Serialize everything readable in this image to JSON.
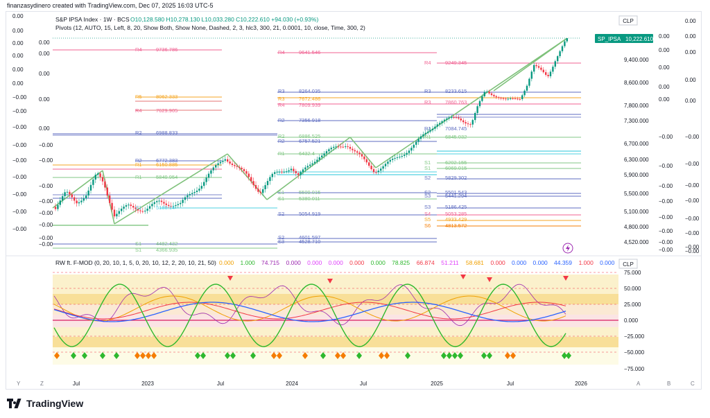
{
  "header": {
    "credit": "finanzasydinero created with TradingView.com, Dec 07, 2025 16:03 UTC-5"
  },
  "legend": {
    "symbol_line": "S&P IPSA Index · 1W · BCS",
    "ohlc": "O10,128.580  H10,278.130  L10,033.280  C10,222.610  +94.030 (+0.93%)",
    "pivots_line": "Pivots (12, AUTO, 15, Left, 8, 20, Show Both, Show None, Dashed, 2, 3, hlc3, 300, 21, 0.0001, 10, close, Time, 300, 2)"
  },
  "price_scale": {
    "currency": "CLP",
    "ticks": [
      "9,400.000",
      "8,600.000",
      "7,800.000",
      "7,300.000",
      "6,700.000",
      "6,300.000",
      "5,900.000",
      "5,500.000",
      "5,100.000",
      "4,800.000",
      "4,520.000"
    ],
    "last_price_symbol": "SP_IPSA",
    "last_price_value": "10,222.610"
  },
  "left_scales": {
    "col1": [
      "0.00",
      "0.00",
      "0.00",
      "0.00",
      "0.00",
      "0.00",
      "−0.00",
      "−0.00",
      "−0.00",
      "−0.00",
      "−0.00",
      "−0.00",
      "−0.00",
      "−0.00",
      "−0.00"
    ],
    "col2": [
      "0.00",
      "0.00",
      "0.00",
      "0.00",
      "0.00",
      "−0.00",
      "−0.00",
      "−0.00",
      "−0.00",
      "−0.00",
      "−0.00",
      "−0.00",
      "−0.00"
    ]
  },
  "right_scales": {
    "col1": [
      "0.00",
      "0.00",
      "0.00",
      "0.00",
      "0.00",
      "−0.00",
      "−0.00",
      "−0.00",
      "−0.00",
      "−0.00",
      "−0.00",
      "−0.00",
      "−0.00"
    ],
    "col2": [
      "0.00",
      "0.00",
      "0.00",
      "0.00",
      "0.00",
      "−0.00",
      "−0.00",
      "−0.00",
      "−0.00",
      "−0.00",
      "−0.00",
      "−0.00",
      "−0.00",
      "−0.00",
      "−0.00"
    ]
  },
  "pivot_labels": [
    {
      "t": "R4",
      "v": "9736.786"
    },
    {
      "t": "R4",
      "v": "9641.546"
    },
    {
      "t": "R4",
      "v": "9249.345"
    },
    {
      "t": "R3",
      "v": "8264.035"
    },
    {
      "t": "R3",
      "v": "8233.615"
    },
    {
      "t": "R5",
      "v": "8062.333"
    },
    {
      "t": "R4",
      "v": "7809.939"
    },
    {
      "t": "R4",
      "v": "7629.905"
    },
    {
      "t": "R2",
      "v": "6988.833"
    },
    {
      "t": "R2",
      "v": "7356.918"
    },
    {
      "t": "R2",
      "v": "6886.525"
    },
    {
      "t": "R2",
      "v": "6757.521"
    },
    {
      "t": "R1",
      "v": "6432.4"
    },
    {
      "t": "R2",
      "v": "6772.383"
    },
    {
      "t": "R1",
      "v": "6150.885"
    },
    {
      "t": "R1",
      "v": "5849.954"
    },
    {
      "t": "S1",
      "v": "5509.015"
    },
    {
      "t": "S1",
      "v": "5380.011"
    },
    {
      "t": "S2",
      "v": "5054.919"
    },
    {
      "t": "S2",
      "v": "4601.597"
    },
    {
      "t": "S3",
      "v": "4528.710"
    },
    {
      "t": "S1",
      "v": "4482.432"
    },
    {
      "t": "S1",
      "v": "4366.935"
    },
    {
      "t": "S1",
      "v": "6202.155"
    },
    {
      "t": "S1",
      "v": "6069.015"
    },
    {
      "t": "S2",
      "v": "5829.302"
    },
    {
      "t": "S2",
      "v": "5501.543"
    },
    {
      "t": "S3",
      "v": "5441.294"
    },
    {
      "t": "S3",
      "v": "5186.425"
    },
    {
      "t": "S4",
      "v": "5053.285"
    },
    {
      "t": "S5",
      "v": "4933.429"
    },
    {
      "t": "S6",
      "v": "4813.572"
    },
    {
      "t": "R1",
      "v": "6845.032"
    },
    {
      "t": "R1",
      "v": "7084.745"
    },
    {
      "t": "S1",
      "v": "5180.14"
    },
    {
      "t": "R3",
      "v": "7672.486"
    },
    {
      "t": "R3",
      "v": "7860.763"
    }
  ],
  "indicator": {
    "title": "RW ft. F-MOD (0, 20, 10, 1, 5, 0, 20, 10, 12, 2, 20, 10, 21, 50)",
    "values": [
      {
        "v": "0.000",
        "c": "#f0a000"
      },
      {
        "v": "1.000",
        "c": "#2eb82e"
      },
      {
        "v": "74.715",
        "c": "#9c27b0"
      },
      {
        "v": "0.000",
        "c": "#9c27b0"
      },
      {
        "v": "0.000",
        "c": "#e040fb"
      },
      {
        "v": "0.000",
        "c": "#e040fb"
      },
      {
        "v": "0.000",
        "c": "#f23645"
      },
      {
        "v": "0.000",
        "c": "#2eb82e"
      },
      {
        "v": "78.825",
        "c": "#2eb82e"
      },
      {
        "v": "66.874",
        "c": "#f23645"
      },
      {
        "v": "51.211",
        "c": "#e040fb"
      },
      {
        "v": "58.681",
        "c": "#f0a000"
      },
      {
        "v": "0.000",
        "c": "#f23645"
      },
      {
        "v": "0.000",
        "c": "#2962ff"
      },
      {
        "v": "0.000",
        "c": "#2962ff"
      },
      {
        "v": "44.359",
        "c": "#2962ff"
      },
      {
        "v": "1.000",
        "c": "#f23645"
      },
      {
        "v": "0.000",
        "c": "#2962ff"
      }
    ],
    "currency": "CLP",
    "scale": [
      "75.000",
      "50.000",
      "25.000",
      "0.000",
      "−25.000",
      "−50.000",
      "−75.000"
    ]
  },
  "time_axis": [
    "Jul",
    "2023",
    "Jul",
    "2024",
    "Jul",
    "2025",
    "Jul",
    "2026"
  ],
  "corner_buttons": {
    "y": "Y",
    "z": "Z",
    "a": "A",
    "b": "B",
    "c": "C"
  },
  "footer": {
    "brand": "TradingView"
  },
  "colors": {
    "accent": "#089981",
    "up": "#089981",
    "down": "#f23645",
    "trend": "#7ec17a"
  }
}
